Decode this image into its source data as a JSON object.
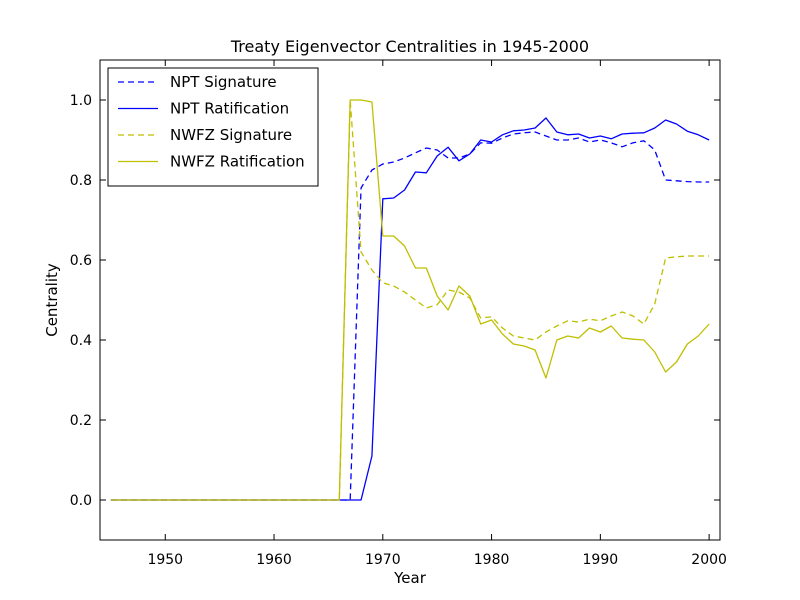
{
  "chart_data": {
    "type": "line",
    "title": "Treaty Eigenvector Centralities in 1945-2000",
    "xlabel": "Year",
    "ylabel": "Centrality",
    "xlim": [
      1944,
      2001
    ],
    "ylim": [
      -0.1,
      1.1
    ],
    "xticks": [
      1950,
      1960,
      1970,
      1980,
      1990,
      2000
    ],
    "xtick_labels": [
      "1950",
      "1960",
      "1970",
      "1980",
      "1990",
      "2000"
    ],
    "yticks": [
      0.0,
      0.2,
      0.4,
      0.6,
      0.8,
      1.0
    ],
    "ytick_labels": [
      "0.0",
      "0.2",
      "0.4",
      "0.6",
      "0.8",
      "1.0"
    ],
    "grid": false,
    "legend_position": "top-left",
    "x": [
      1945,
      1946,
      1947,
      1948,
      1949,
      1950,
      1951,
      1952,
      1953,
      1954,
      1955,
      1956,
      1957,
      1958,
      1959,
      1960,
      1961,
      1962,
      1963,
      1964,
      1965,
      1966,
      1967,
      1968,
      1969,
      1970,
      1971,
      1972,
      1973,
      1974,
      1975,
      1976,
      1977,
      1978,
      1979,
      1980,
      1981,
      1982,
      1983,
      1984,
      1985,
      1986,
      1987,
      1988,
      1989,
      1990,
      1991,
      1992,
      1993,
      1994,
      1995,
      1996,
      1997,
      1998,
      1999,
      2000
    ],
    "series": [
      {
        "name": "NPT Signature",
        "color": "#0000ff",
        "dash": "dashed",
        "values": [
          0,
          0,
          0,
          0,
          0,
          0,
          0,
          0,
          0,
          0,
          0,
          0,
          0,
          0,
          0,
          0,
          0,
          0,
          0,
          0,
          0,
          0,
          0,
          0.78,
          0.825,
          0.84,
          0.845,
          0.855,
          0.868,
          0.88,
          0.875,
          0.855,
          0.855,
          0.865,
          0.893,
          0.892,
          0.905,
          0.915,
          0.918,
          0.92,
          0.91,
          0.9,
          0.9,
          0.905,
          0.895,
          0.9,
          0.893,
          0.883,
          0.893,
          0.898,
          0.875,
          0.8,
          0.798,
          0.796,
          0.795,
          0.795
        ]
      },
      {
        "name": "NPT Ratification",
        "color": "#0000ff",
        "dash": "solid",
        "values": [
          0,
          0,
          0,
          0,
          0,
          0,
          0,
          0,
          0,
          0,
          0,
          0,
          0,
          0,
          0,
          0,
          0,
          0,
          0,
          0,
          0,
          0,
          0,
          0,
          0.11,
          0.753,
          0.755,
          0.775,
          0.82,
          0.818,
          0.86,
          0.882,
          0.848,
          0.865,
          0.9,
          0.895,
          0.913,
          0.923,
          0.925,
          0.93,
          0.955,
          0.92,
          0.913,
          0.915,
          0.905,
          0.91,
          0.903,
          0.915,
          0.917,
          0.918,
          0.93,
          0.95,
          0.94,
          0.922,
          0.913,
          0.9
        ]
      },
      {
        "name": "NWFZ Signature",
        "color": "#bfbf00",
        "dash": "dashed",
        "values": [
          0,
          0,
          0,
          0,
          0,
          0,
          0,
          0,
          0,
          0,
          0,
          0,
          0,
          0,
          0,
          0,
          0,
          0,
          0,
          0,
          0,
          0,
          1.0,
          0.62,
          0.575,
          0.543,
          0.535,
          0.52,
          0.5,
          0.48,
          0.488,
          0.525,
          0.52,
          0.505,
          0.455,
          0.458,
          0.43,
          0.41,
          0.405,
          0.4,
          0.42,
          0.435,
          0.448,
          0.445,
          0.452,
          0.448,
          0.46,
          0.47,
          0.46,
          0.44,
          0.49,
          0.605,
          0.608,
          0.61,
          0.61,
          0.61
        ]
      },
      {
        "name": "NWFZ Ratification",
        "color": "#bfbf00",
        "dash": "solid",
        "values": [
          0,
          0,
          0,
          0,
          0,
          0,
          0,
          0,
          0,
          0,
          0,
          0,
          0,
          0,
          0,
          0,
          0,
          0,
          0,
          0,
          0,
          0,
          1.0,
          1.0,
          0.995,
          0.66,
          0.66,
          0.635,
          0.58,
          0.58,
          0.51,
          0.475,
          0.535,
          0.51,
          0.44,
          0.45,
          0.415,
          0.39,
          0.385,
          0.375,
          0.305,
          0.4,
          0.41,
          0.405,
          0.43,
          0.42,
          0.435,
          0.405,
          0.402,
          0.4,
          0.37,
          0.32,
          0.345,
          0.39,
          0.41,
          0.44
        ]
      }
    ]
  }
}
